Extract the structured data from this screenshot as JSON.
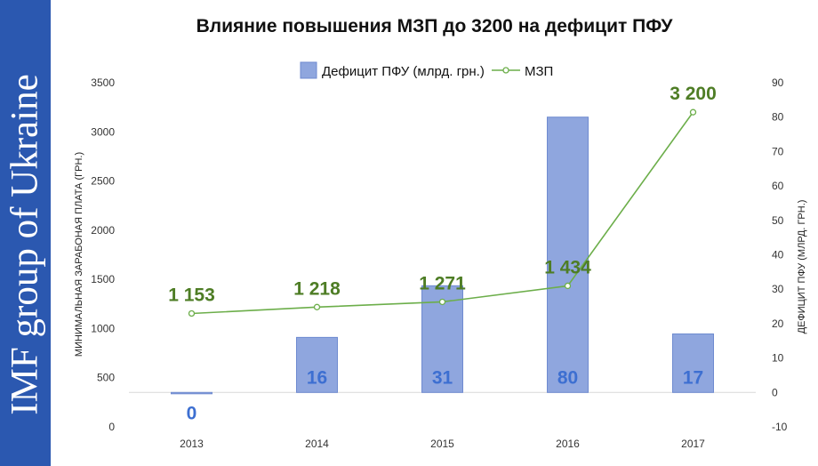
{
  "banner": {
    "text": "IMF group of Ukraine"
  },
  "colors": {
    "banner_bg": "#2b58b0",
    "bar_fill": "#8fa6de",
    "bar_label": "#3d6fd1",
    "line": "#6cae4a",
    "line_label": "#4e7d25"
  },
  "chart_data": {
    "type": "bar+line",
    "title": "Влияние повышения МЗП до 3200 на дефицит ПФУ",
    "categories": [
      "2013",
      "2014",
      "2015",
      "2016",
      "2017"
    ],
    "series": [
      {
        "name": "Дефицит ПФУ (млрд. грн.)",
        "type": "bar",
        "axis": "right",
        "values": [
          0,
          16,
          31,
          80,
          17
        ],
        "labels": [
          "0",
          "16",
          "31",
          "80",
          "17"
        ]
      },
      {
        "name": "МЗП",
        "type": "line",
        "axis": "left",
        "values": [
          1153,
          1218,
          1271,
          1434,
          3200
        ],
        "labels": [
          "1 153",
          "1 218",
          "1 271",
          "1 434",
          "3 200"
        ]
      }
    ],
    "left_axis": {
      "label": "МИНИМАЛЬНАЯ ЗАРАБОНАЯ ПЛАТА (ГРН.)",
      "range": [
        0,
        3500
      ],
      "ticks": [
        "0",
        "500",
        "1000",
        "1500",
        "2000",
        "2500",
        "3000",
        "3500"
      ]
    },
    "right_axis": {
      "label": "ДЕФИЦИТ ПФУ (МЛРД. ГРН.)",
      "range": [
        -10,
        90
      ],
      "ticks": [
        "-10",
        "0",
        "10",
        "20",
        "30",
        "40",
        "50",
        "60",
        "70",
        "80",
        "90"
      ]
    },
    "legend": {
      "position": "top"
    },
    "grid": false
  }
}
